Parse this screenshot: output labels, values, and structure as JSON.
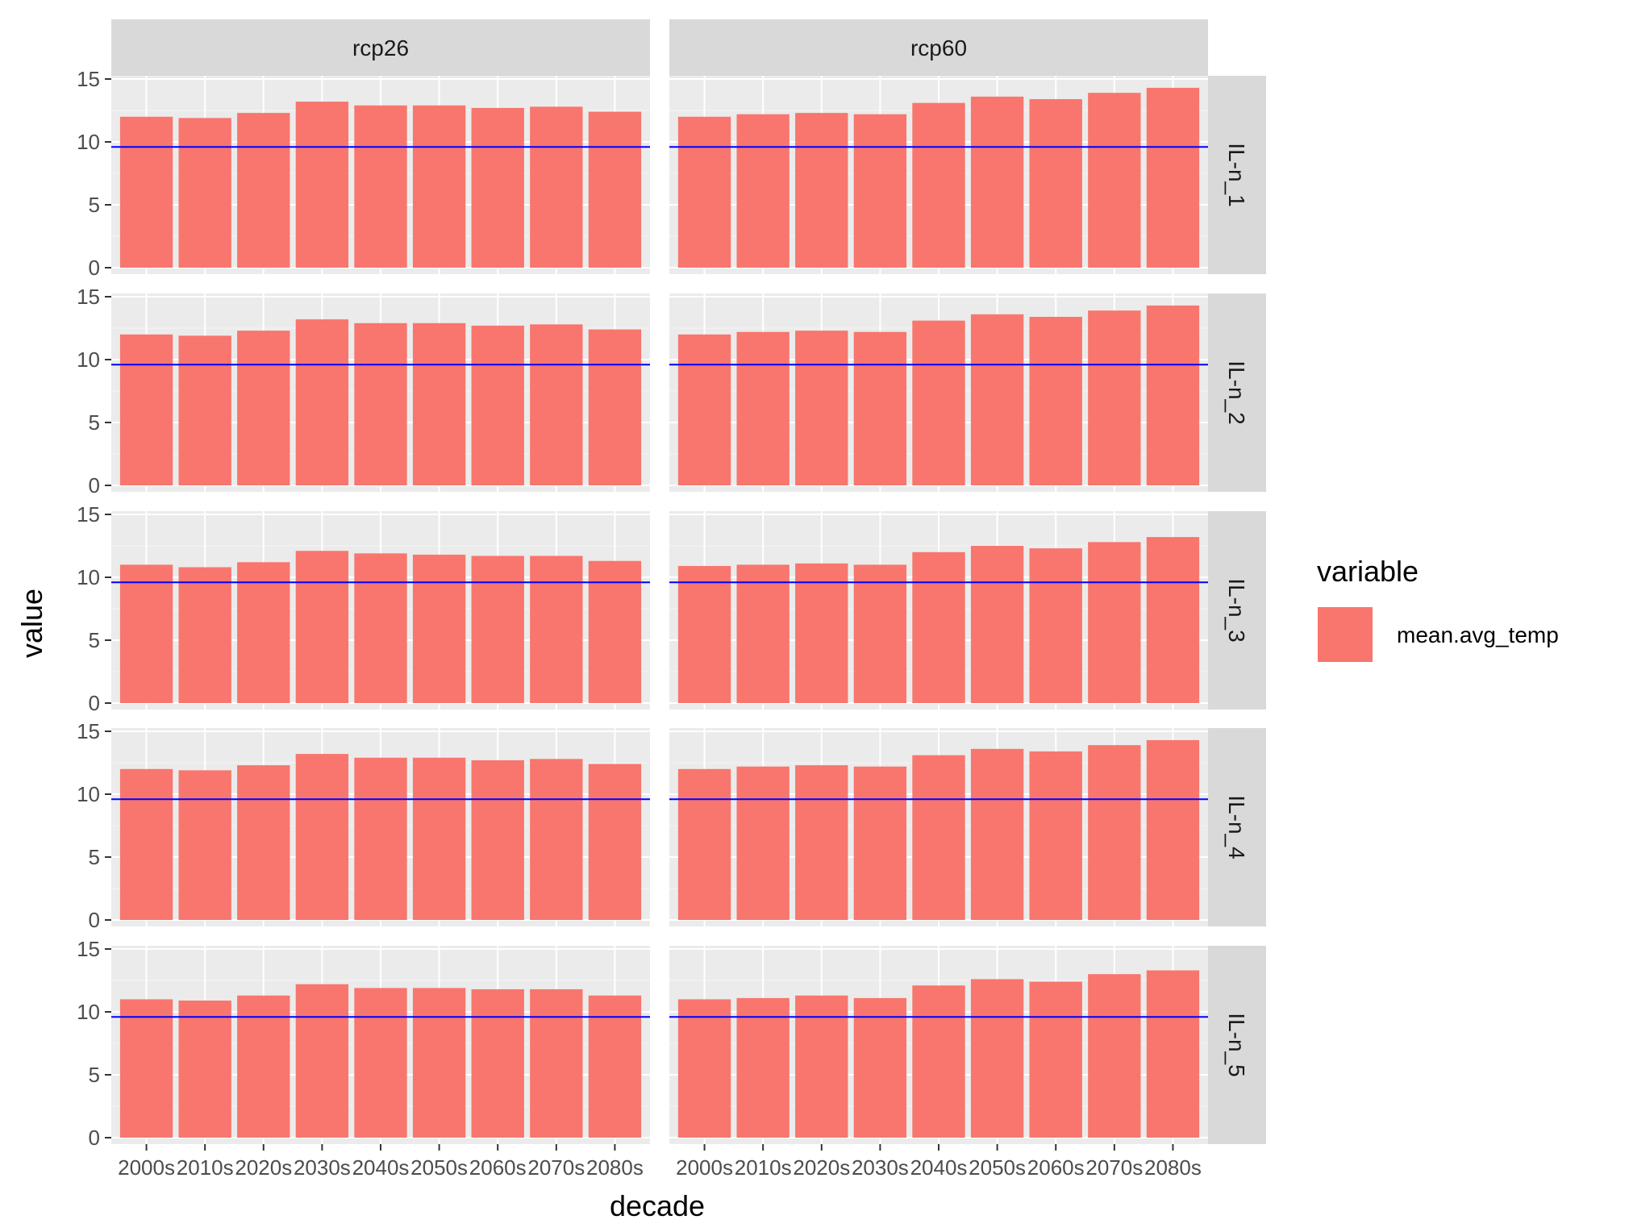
{
  "chart_data": {
    "type": "bar",
    "layout": "facet_grid",
    "xlabel": "decade",
    "ylabel": "value",
    "categories": [
      "2000s",
      "2010s",
      "2020s",
      "2030s",
      "2040s",
      "2050s",
      "2060s",
      "2070s",
      "2080s"
    ],
    "ylim": [
      0,
      15
    ],
    "yticks": [
      0,
      5,
      10,
      15
    ],
    "reference_line": {
      "value": 9.6,
      "color": "#0000ff"
    },
    "bar_color": "#F8766D",
    "legend": {
      "title": "variable",
      "entries": [
        "mean.avg_temp"
      ],
      "position": "right"
    },
    "facet_columns": [
      "rcp26",
      "rcp60"
    ],
    "facet_rows": [
      "IL-n_1",
      "IL-n_2",
      "IL-n_3",
      "IL-n_4",
      "IL-n_5"
    ],
    "panels": [
      {
        "row": "IL-n_1",
        "col": "rcp26",
        "values": [
          12.0,
          11.9,
          12.3,
          13.2,
          12.9,
          12.9,
          12.7,
          12.8,
          12.4
        ]
      },
      {
        "row": "IL-n_1",
        "col": "rcp60",
        "values": [
          12.0,
          12.2,
          12.3,
          12.2,
          13.1,
          13.6,
          13.4,
          13.9,
          14.3
        ]
      },
      {
        "row": "IL-n_2",
        "col": "rcp26",
        "values": [
          12.0,
          11.9,
          12.3,
          13.2,
          12.9,
          12.9,
          12.7,
          12.8,
          12.4
        ]
      },
      {
        "row": "IL-n_2",
        "col": "rcp60",
        "values": [
          12.0,
          12.2,
          12.3,
          12.2,
          13.1,
          13.6,
          13.4,
          13.9,
          14.3
        ]
      },
      {
        "row": "IL-n_3",
        "col": "rcp26",
        "values": [
          11.0,
          10.8,
          11.2,
          12.1,
          11.9,
          11.8,
          11.7,
          11.7,
          11.3
        ]
      },
      {
        "row": "IL-n_3",
        "col": "rcp60",
        "values": [
          10.9,
          11.0,
          11.1,
          11.0,
          12.0,
          12.5,
          12.3,
          12.8,
          13.2
        ]
      },
      {
        "row": "IL-n_4",
        "col": "rcp26",
        "values": [
          12.0,
          11.9,
          12.3,
          13.2,
          12.9,
          12.9,
          12.7,
          12.8,
          12.4
        ]
      },
      {
        "row": "IL-n_4",
        "col": "rcp60",
        "values": [
          12.0,
          12.2,
          12.3,
          12.2,
          13.1,
          13.6,
          13.4,
          13.9,
          14.3
        ]
      },
      {
        "row": "IL-n_5",
        "col": "rcp26",
        "values": [
          11.0,
          10.9,
          11.3,
          12.2,
          11.9,
          11.9,
          11.8,
          11.8,
          11.3
        ]
      },
      {
        "row": "IL-n_5",
        "col": "rcp60",
        "values": [
          11.0,
          11.1,
          11.3,
          11.1,
          12.1,
          12.6,
          12.4,
          13.0,
          13.3
        ]
      }
    ]
  }
}
